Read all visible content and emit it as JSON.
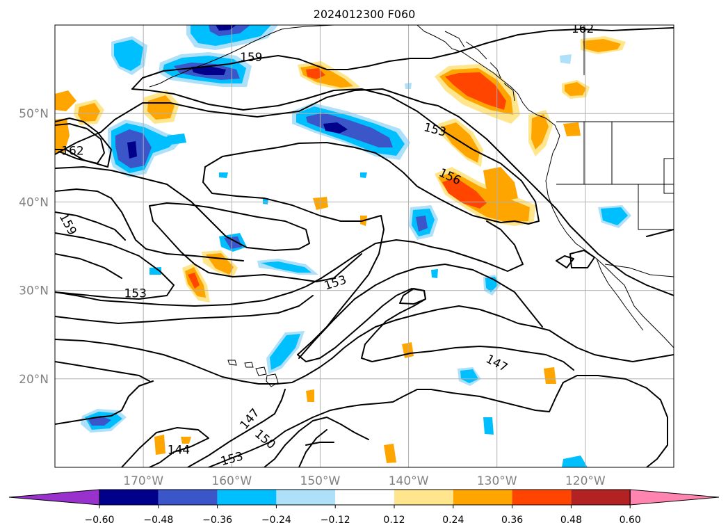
{
  "title": "2024012300 F060",
  "chart_data": {
    "type": "contour",
    "title": "2024012300 F060",
    "map": {
      "lon_range": [
        -180,
        -110
      ],
      "lat_range": [
        10,
        60
      ],
      "lon_ticks": [
        -170,
        -160,
        -150,
        -140,
        -130,
        -120
      ],
      "lon_tick_labels": [
        "170°W",
        "160°W",
        "150°W",
        "140°W",
        "130°W",
        "120°W"
      ],
      "lat_ticks": [
        20,
        30,
        40,
        50
      ],
      "lat_tick_labels": [
        "20°N",
        "30°N",
        "40°N",
        "50°N"
      ],
      "grid": true,
      "coastlines": true
    },
    "contour_labels": [
      {
        "text": "162",
        "lon": -178.0,
        "lat": 45.8
      },
      {
        "text": "162",
        "lon": -120.3,
        "lat": 59.6
      },
      {
        "text": "159",
        "lon": -157.8,
        "lat": 56.4
      },
      {
        "text": "159",
        "lon": -178.5,
        "lat": 37.5
      },
      {
        "text": "153",
        "lon": -137.0,
        "lat": 48.2
      },
      {
        "text": "156",
        "lon": -135.3,
        "lat": 42.9
      },
      {
        "text": "153",
        "lon": -170.9,
        "lat": 29.7
      },
      {
        "text": "153",
        "lon": -148.3,
        "lat": 30.9
      },
      {
        "text": "150",
        "lon": -187.0,
        "lat": 29.4
      },
      {
        "text": "147",
        "lon": -130.0,
        "lat": 21.8
      },
      {
        "text": "147",
        "lon": -158.0,
        "lat": 15.5
      },
      {
        "text": "150",
        "lon": -156.2,
        "lat": 13.2
      },
      {
        "text": "144",
        "lon": -166.0,
        "lat": 12.0
      },
      {
        "text": "153",
        "lon": -160.0,
        "lat": 11.0
      }
    ],
    "colorbar": {
      "orientation": "horizontal",
      "extend": "both",
      "levels": [
        -0.6,
        -0.48,
        -0.36,
        -0.24,
        -0.12,
        0.12,
        0.24,
        0.36,
        0.48,
        0.6
      ],
      "tick_labels": [
        "−0.60",
        "−0.48",
        "−0.36",
        "−0.24",
        "−0.12",
        "0.12",
        "0.24",
        "0.36",
        "0.48",
        "0.60"
      ],
      "colors": [
        "#9932cc",
        "#00008b",
        "#3a56c8",
        "#00bfff",
        "#aee0fa",
        "#ffffff",
        "#ffe68c",
        "#ffa500",
        "#ff4500",
        "#b22222",
        "#ff85b0"
      ]
    }
  }
}
